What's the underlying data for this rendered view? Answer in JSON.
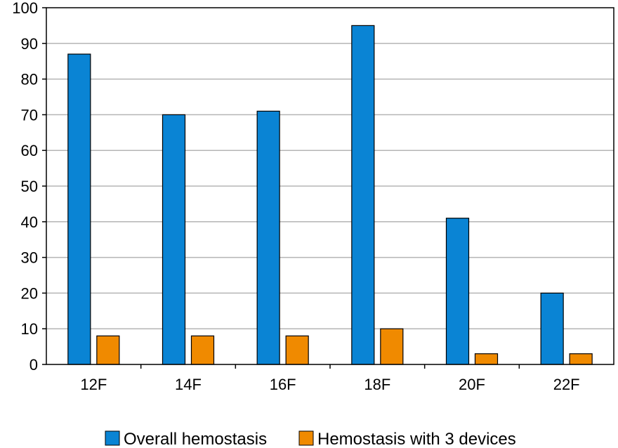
{
  "chart_data": {
    "type": "bar",
    "categories": [
      "12F",
      "14F",
      "16F",
      "18F",
      "20F",
      "22F"
    ],
    "series": [
      {
        "name": "Overall hemostasis",
        "color": "#0a84d4",
        "values": [
          87,
          70,
          71,
          95,
          41,
          20
        ]
      },
      {
        "name": "Hemostasis with 3 devices",
        "color": "#f08a00",
        "values": [
          8,
          8,
          8,
          10,
          3,
          3
        ]
      }
    ],
    "ylim": [
      0,
      100
    ],
    "yticks": [
      "0",
      "10",
      "20",
      "30",
      "40",
      "50",
      "60",
      "70",
      "80",
      "90",
      "100"
    ],
    "grid": true,
    "legend_position": "bottom"
  }
}
